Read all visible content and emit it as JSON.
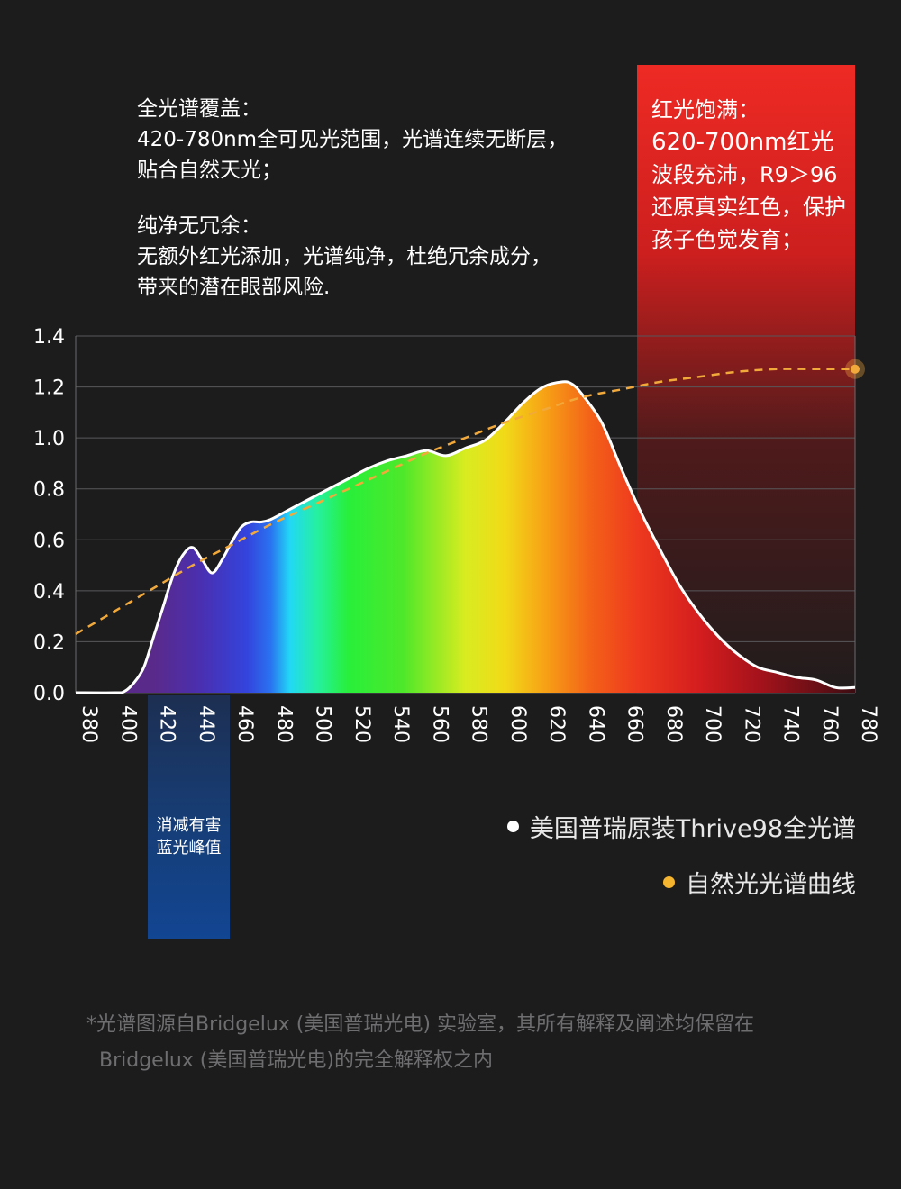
{
  "features": {
    "full_spectrum_title": "全光谱覆盖：",
    "full_spectrum_lines": [
      "420-780nm全可见光范围，光谱连续无断层，",
      "贴合自然天光；"
    ],
    "pure_title": "纯净无冗余：",
    "pure_lines": [
      "无额外红光添加，光谱纯净，杜绝冗余成分，",
      "带来的潜在眼部风险."
    ]
  },
  "red_panel": {
    "title": "红光饱满：",
    "lines": [
      "620-700nm红光",
      "波段充沛，R9＞96",
      "还原真实红色，保护",
      "孩子色觉发育；"
    ]
  },
  "blue_panel": {
    "lines": [
      "消减有害",
      "蓝光峰值"
    ]
  },
  "legend": {
    "white_label": "美国普瑞原装Thrive98全光谱",
    "gold_label": "自然光光谱曲线"
  },
  "footnote": {
    "line1": "*光谱图源自Bridgelux (美国普瑞光电) 实验室，其所有解释及阐述均保留在",
    "line2": "Bridgelux (美国普瑞光电)的完全解释权之内"
  },
  "colors": {
    "background": "#1c1c1d",
    "red_panel": "#ee2a24",
    "blue_panel": "#124592",
    "natural_curve": "#f2a93b",
    "spectrum_outline": "#ffffff"
  },
  "chart_data": {
    "type": "area",
    "xlabel": "",
    "ylabel": "",
    "xlim": [
      380,
      780
    ],
    "ylim": [
      0,
      1.4
    ],
    "xticks": [
      380,
      400,
      420,
      440,
      460,
      480,
      500,
      520,
      540,
      560,
      580,
      600,
      620,
      640,
      660,
      680,
      700,
      720,
      740,
      760,
      780
    ],
    "yticks": [
      "0.0",
      "0.2",
      "0.4",
      "0.6",
      "0.8",
      "1.0",
      "1.2",
      "1.4"
    ],
    "grid": true,
    "series": [
      {
        "name": "美国普瑞原装Thrive98全光谱",
        "style": "filled spectrum area, white outline",
        "x": [
          380,
          400,
          405,
          410,
          415,
          420,
          425,
          430,
          435,
          440,
          445,
          450,
          455,
          460,
          465,
          470,
          475,
          480,
          490,
          500,
          510,
          520,
          530,
          540,
          550,
          560,
          570,
          580,
          590,
          600,
          610,
          620,
          630,
          635,
          640,
          650,
          660,
          670,
          680,
          690,
          700,
          710,
          720,
          730,
          740,
          750,
          760,
          770,
          780
        ],
        "y": [
          0,
          0,
          0.005,
          0.04,
          0.1,
          0.22,
          0.34,
          0.46,
          0.54,
          0.57,
          0.52,
          0.47,
          0.52,
          0.59,
          0.65,
          0.67,
          0.67,
          0.68,
          0.72,
          0.76,
          0.8,
          0.84,
          0.88,
          0.91,
          0.93,
          0.95,
          0.93,
          0.96,
          0.99,
          1.06,
          1.14,
          1.2,
          1.22,
          1.21,
          1.17,
          1.06,
          0.88,
          0.71,
          0.56,
          0.42,
          0.31,
          0.22,
          0.15,
          0.1,
          0.08,
          0.06,
          0.05,
          0.02,
          0.02
        ]
      },
      {
        "name": "自然光光谱曲线",
        "style": "dashed gold line",
        "x": [
          380,
          400,
          420,
          440,
          460,
          480,
          500,
          520,
          540,
          560,
          580,
          600,
          620,
          640,
          660,
          680,
          700,
          720,
          740,
          760,
          780
        ],
        "y": [
          0.23,
          0.32,
          0.41,
          0.5,
          0.58,
          0.66,
          0.73,
          0.8,
          0.87,
          0.94,
          1.0,
          1.06,
          1.11,
          1.16,
          1.19,
          1.22,
          1.24,
          1.26,
          1.27,
          1.27,
          1.27
        ]
      }
    ]
  }
}
